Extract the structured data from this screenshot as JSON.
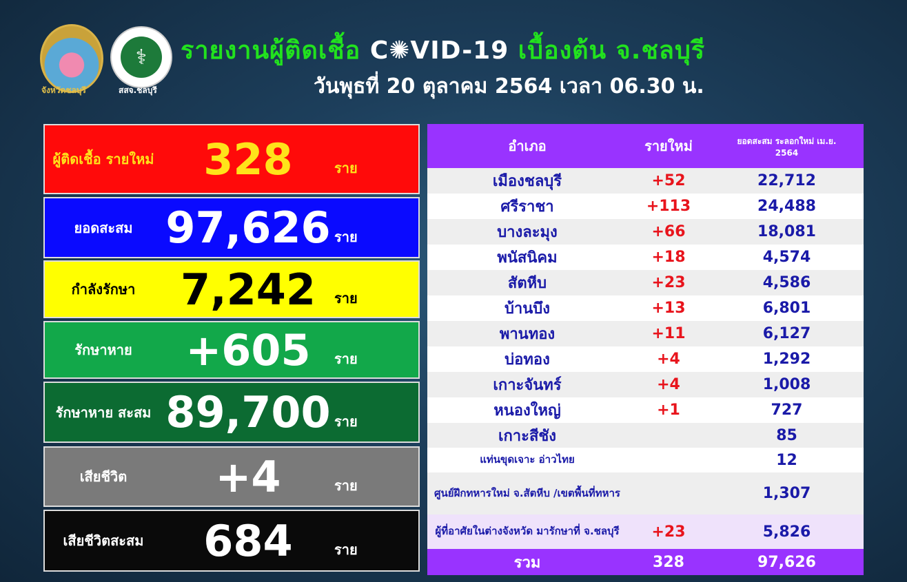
{
  "header": {
    "logo1_caption": "จังหวัดชลบุรี",
    "logo2_caption": "สสจ.ชลบุรี",
    "title_prefix": "รายงานผู้ติดเชื้อ",
    "title_covid": "C✺VID-19",
    "title_suffix": "เบื้องต้น จ.ชลบุรี",
    "date": "วันพุธที่ 20 ตุลาคม 2564 เวลา 06.30 น."
  },
  "stats": [
    {
      "label": "ผู้ติดเชื้อ รายใหม่",
      "value": "328",
      "unit": "ราย",
      "bg": "#ff0a0a",
      "color": "#ffe31a"
    },
    {
      "label": "ยอดสะสม",
      "value": "97,626",
      "unit": "ราย",
      "bg": "#0a0aff",
      "color": "#ffffff"
    },
    {
      "label": "กำลังรักษา",
      "value": "7,242",
      "unit": "ราย",
      "bg": "#ffff00",
      "color": "#000000"
    },
    {
      "label": "รักษาหาย",
      "value": "+605",
      "unit": "ราย",
      "bg": "#12a84a",
      "color": "#ffffff"
    },
    {
      "label": "รักษาหาย สะสม",
      "value": "89,700",
      "unit": "ราย",
      "bg": "#0c6b32",
      "color": "#ffffff"
    },
    {
      "label": "เสียชีวิต",
      "value": "+4",
      "unit": "ราย",
      "bg": "#7a7a7a",
      "color": "#ffffff"
    },
    {
      "label": "เสียชีวิตสะสม",
      "value": "684",
      "unit": "ราย",
      "bg": "#0a0a0a",
      "color": "#ffffff"
    }
  ],
  "table": {
    "headers": [
      "อำเภอ",
      "รายใหม่",
      "ยอดสะสม ระลอกใหม่ เม.ย. 2564"
    ],
    "rows": [
      [
        "เมืองชลบุรี",
        "+52",
        "22,712"
      ],
      [
        "ศรีราชา",
        "+113",
        "24,488"
      ],
      [
        "บางละมุง",
        "+66",
        "18,081"
      ],
      [
        "พนัสนิคม",
        "+18",
        "4,574"
      ],
      [
        "สัตหีบ",
        "+23",
        "4,586"
      ],
      [
        "บ้านบึง",
        "+13",
        "6,801"
      ],
      [
        "พานทอง",
        "+11",
        "6,127"
      ],
      [
        "บ่อทอง",
        "+4",
        "1,292"
      ],
      [
        "เกาะจันทร์",
        "+4",
        "1,008"
      ],
      [
        "หนองใหญ่",
        "+1",
        "727"
      ],
      [
        "เกาะสีชัง",
        "",
        "85"
      ],
      [
        "แท่นขุดเจาะ อ่าวไทย",
        "",
        "12"
      ],
      [
        "ศูนย์ฝึกทหารใหม่ จ.สัตหีบ /เขตพื้นที่ทหาร",
        "",
        "1,307"
      ],
      [
        "ผู้ที่อาศัยในต่างจังหวัด มารักษาที่ จ.ชลบุรี",
        "+23",
        "5,826"
      ]
    ],
    "total": [
      "รวม",
      "328",
      "97,626"
    ]
  }
}
